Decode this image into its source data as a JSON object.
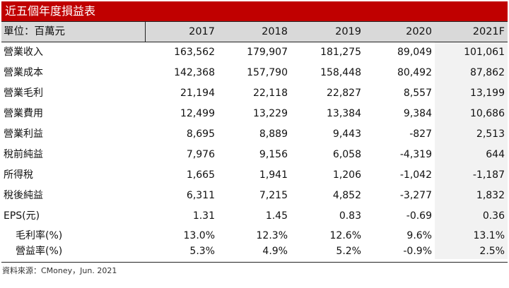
{
  "title": "近五個年度損益表",
  "header": {
    "unit": "單位：百萬元",
    "years": [
      "2017",
      "2018",
      "2019",
      "2020",
      "2021F"
    ]
  },
  "rows": [
    {
      "label": "營業收入",
      "values": [
        "163,562",
        "179,907",
        "181,275",
        "89,049",
        "101,061"
      ]
    },
    {
      "label": "營業成本",
      "values": [
        "142,368",
        "157,790",
        "158,448",
        "80,492",
        "87,862"
      ]
    },
    {
      "label": "營業毛利",
      "values": [
        "21,194",
        "22,118",
        "22,827",
        "8,557",
        "13,199"
      ]
    },
    {
      "label": "營業費用",
      "values": [
        "12,499",
        "13,229",
        "13,384",
        "9,384",
        "10,686"
      ]
    },
    {
      "label": "營業利益",
      "values": [
        "8,695",
        "8,889",
        "9,443",
        "-827",
        "2,513"
      ]
    },
    {
      "label": "稅前純益",
      "values": [
        "7,976",
        "9,156",
        "6,058",
        "-4,319",
        "644"
      ]
    },
    {
      "label": "所得稅",
      "values": [
        "1,665",
        "1,941",
        "1,206",
        "-1,042",
        "-1,187"
      ]
    },
    {
      "label": "稅後純益",
      "values": [
        "6,311",
        "7,215",
        "4,852",
        "-3,277",
        "1,832"
      ]
    },
    {
      "label": "EPS(元)",
      "values": [
        "1.31",
        "1.45",
        "0.83",
        "-0.69",
        "0.36"
      ]
    }
  ],
  "ratio_rows": [
    {
      "label": "毛利率(%)",
      "values": [
        "13.0%",
        "12.3%",
        "12.6%",
        "9.6%",
        "13.1%"
      ]
    },
    {
      "label": "營益率(%)",
      "values": [
        "5.3%",
        "4.9%",
        "5.2%",
        "-0.9%",
        "2.5%"
      ]
    }
  ],
  "source": "資料來源：CMoney，Jun. 2021",
  "colors": {
    "title_bg": "#c00000",
    "header_bg": "#d9d9d9",
    "forecast_bg": "#f2f2f2"
  }
}
